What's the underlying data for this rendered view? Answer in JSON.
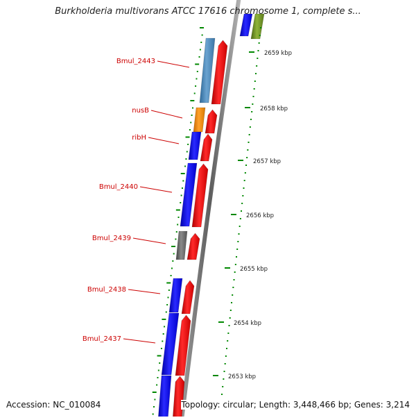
{
  "header": {
    "title": "Burkholderia multivorans ATCC 17616 chromosome 1, complete s..."
  },
  "footer": {
    "accession": "Accession: NC_010084",
    "topology": "Topology: circular; Length: 3,448,466 bp; Genes: 3,214"
  },
  "ruler": {
    "ticks": [
      "2659 kbp",
      "2658 kbp",
      "2657 kbp",
      "2656 kbp",
      "2655 kbp",
      "2654 kbp",
      "2653 kbp"
    ]
  },
  "genes": [
    {
      "label": "Bmul_2443",
      "color": "#4a86b8"
    },
    {
      "label": "nusB",
      "color": "#f08c00"
    },
    {
      "label": "ribH",
      "color": "#0000ee"
    },
    {
      "label": "Bmul_2440",
      "color": "#0000ee"
    },
    {
      "label": "Bmul_2439",
      "color": "#666666"
    },
    {
      "label": "Bmul_2438",
      "color": "#0000ee"
    },
    {
      "label": "Bmul_2437",
      "color": "#0000ee"
    }
  ],
  "colors": {
    "label_color": "#cc0000",
    "leader_color": "#cc0000",
    "cds_color": "#ee0000",
    "backbone_color": "#888888",
    "tick_color": "#008800",
    "gene_blue": "#0000ee",
    "gene_olive": "#6b8e23"
  }
}
